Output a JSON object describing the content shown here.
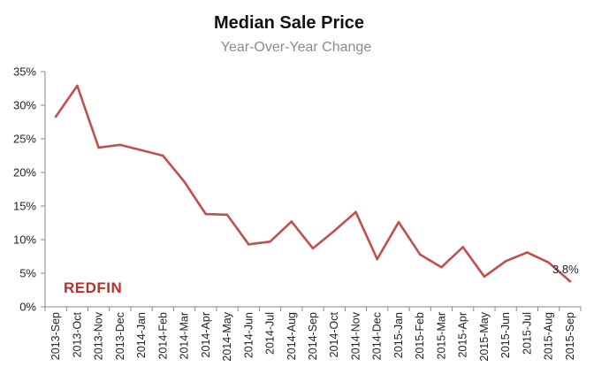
{
  "chart_data": {
    "type": "line",
    "title": "Median Sale Price",
    "subtitle": "Year-Over-Year Change",
    "xlabel": "",
    "ylabel": "",
    "ylim": [
      0,
      35
    ],
    "yticks": [
      "0%",
      "5%",
      "10%",
      "15%",
      "20%",
      "25%",
      "30%",
      "35%"
    ],
    "y_tick_values": [
      0,
      5,
      10,
      15,
      20,
      25,
      30,
      35
    ],
    "grid": false,
    "legend": "none",
    "line_color": "#c0504d",
    "logo_text": "REDFIN",
    "logo_color": "#b5312d",
    "data_label": "3.8%",
    "categories": [
      "2013-Sep",
      "2013-Oct",
      "2013-Nov",
      "2013-Dec",
      "2014-Jan",
      "2014-Feb",
      "2014-Mar",
      "2014-Apr",
      "2014-May",
      "2014-Jun",
      "2014-Jul",
      "2014-Aug",
      "2014-Sep",
      "2014-Oct",
      "2014-Nov",
      "2014-Dec",
      "2015-Jan",
      "2015-Feb",
      "2015-Mar",
      "2015-Apr",
      "2015-May",
      "2015-Jun",
      "2015-Jul",
      "2015-Aug",
      "2015-Sep"
    ],
    "series": [
      {
        "values": [
          28.3,
          32.9,
          23.7,
          24.1,
          23.3,
          22.5,
          18.6,
          13.8,
          13.7,
          9.3,
          9.7,
          12.7,
          8.7,
          11.3,
          14.1,
          7.1,
          12.6,
          7.8,
          5.9,
          8.9,
          4.5,
          6.8,
          8.1,
          6.6,
          3.8
        ]
      }
    ]
  }
}
